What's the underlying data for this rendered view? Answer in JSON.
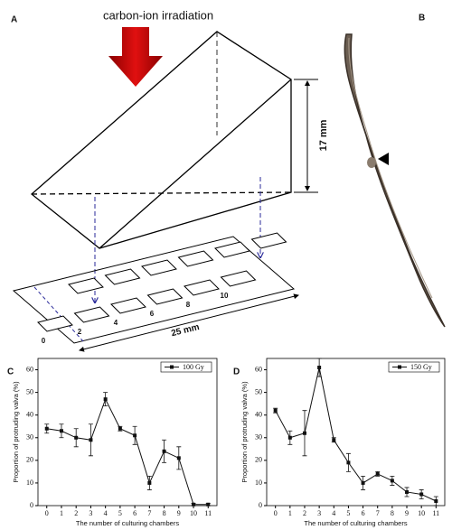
{
  "panels": {
    "a": "A",
    "b": "B",
    "c": "C",
    "d": "D"
  },
  "diagram": {
    "beam": "carbon-ion irradiation",
    "height": "17 mm",
    "width": "25 mm",
    "chambers": [
      "0",
      "2",
      "4",
      "6",
      "8",
      "10"
    ]
  },
  "chart_data": [
    {
      "type": "line",
      "x_label": "The number of culturing chambers",
      "y_label": "Proportion of protruding valva (%)",
      "x": [
        0,
        1,
        2,
        3,
        4,
        5,
        6,
        7,
        8,
        9,
        10,
        11
      ],
      "xlim": [
        -0.6,
        11.6
      ],
      "xticks": [
        0,
        1,
        2,
        3,
        4,
        5,
        6,
        7,
        8,
        9,
        10,
        11
      ],
      "ylim": [
        0,
        65
      ],
      "yticks": [
        0,
        10,
        20,
        30,
        40,
        50,
        60
      ],
      "legend": "upper right",
      "series": [
        {
          "name": "100 Gy",
          "color": "#111111",
          "values": [
            34,
            33,
            30,
            29,
            47,
            34,
            31,
            10,
            24,
            21,
            0.5,
            0.5
          ],
          "errors": [
            2,
            3,
            4,
            7,
            3,
            1,
            4,
            3,
            5,
            5,
            0.5,
            0.5
          ]
        }
      ]
    },
    {
      "type": "line",
      "x_label": "The number of culturing chambers",
      "y_label": "Proportion of protruding valva (%)",
      "x": [
        0,
        1,
        2,
        3,
        4,
        5,
        6,
        7,
        8,
        9,
        10,
        11
      ],
      "xlim": [
        -0.6,
        11.6
      ],
      "xticks": [
        0,
        1,
        2,
        3,
        4,
        5,
        6,
        7,
        8,
        9,
        10,
        11
      ],
      "ylim": [
        0,
        65
      ],
      "yticks": [
        0,
        10,
        20,
        30,
        40,
        50,
        60
      ],
      "legend": "upper right",
      "series": [
        {
          "name": "150 Gy",
          "color": "#111111",
          "values": [
            42,
            30,
            32,
            61,
            29,
            19,
            10,
            14,
            11,
            6,
            5,
            2
          ],
          "errors": [
            1,
            3,
            10,
            4,
            1,
            4,
            3,
            1,
            2,
            2,
            2,
            2
          ]
        }
      ]
    }
  ]
}
